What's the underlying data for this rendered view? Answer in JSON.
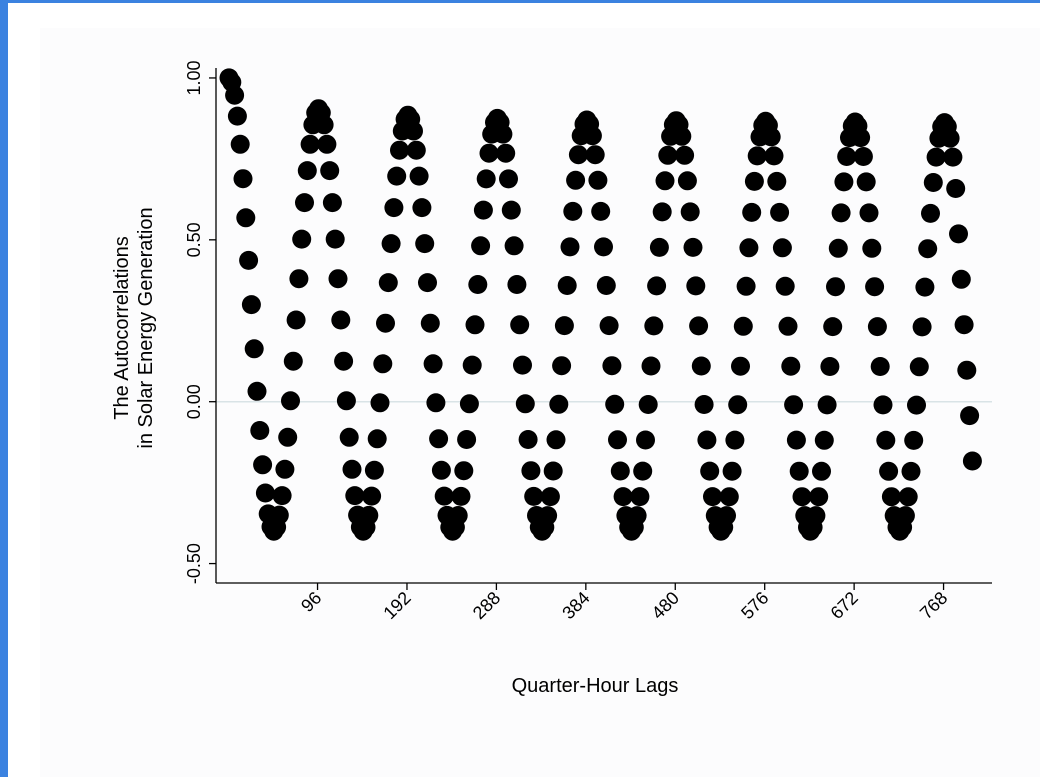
{
  "chart_data": {
    "type": "scatter",
    "title": "",
    "xlabel": "Quarter-Hour Lags",
    "ylabel_lines": [
      "The Autocorrelations",
      "in Solar Energy Generation"
    ],
    "x_ticks": [
      96,
      192,
      288,
      384,
      480,
      576,
      672,
      768
    ],
    "x_tick_labels": [
      "96",
      "192",
      "288",
      "384",
      "480",
      "576",
      "672",
      "768"
    ],
    "y_ticks": [
      -0.5,
      0,
      0.5,
      1
    ],
    "y_tick_labels": [
      "-0.50",
      "0.00",
      "0.50",
      "1.00"
    ],
    "xlim": [
      -13,
      820
    ],
    "ylim": [
      -0.56,
      1.04
    ],
    "grid": false,
    "reference_line_y": 0,
    "marker_color": "#000000",
    "series": [
      {
        "description": "autocorrelation by lag",
        "x_range": [
          1,
          800
        ],
        "period": 96,
        "peaks": [
          1.0,
          0.905,
          0.885,
          0.875,
          0.87,
          0.868,
          0.866,
          0.864,
          0.862
        ],
        "troughs": [
          -0.4,
          -0.4,
          -0.4,
          -0.4,
          -0.4,
          -0.4,
          -0.4,
          -0.4
        ],
        "last_value": -0.23
      }
    ]
  }
}
